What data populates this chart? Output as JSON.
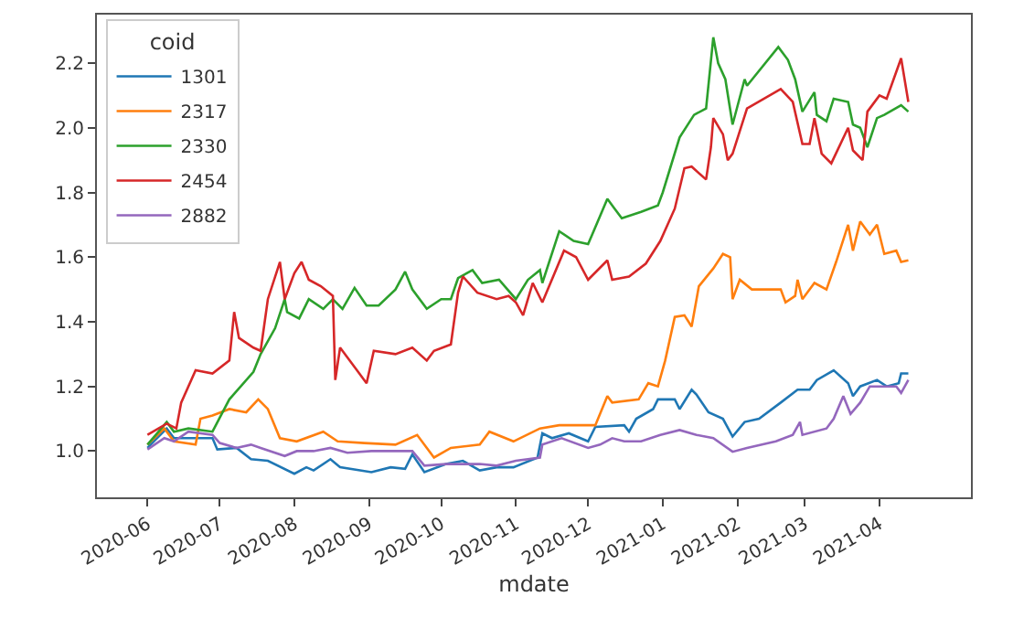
{
  "chart_data": {
    "type": "line",
    "xlabel": "mdate",
    "legend_title": "coid",
    "legend": "top left",
    "xlim": [
      "2020-05-11",
      "2021-05-09"
    ],
    "ylim": [
      0.857,
      2.35
    ],
    "xticks": [
      {
        "value": "2020-06-01",
        "label": "2020-06"
      },
      {
        "value": "2020-07-01",
        "label": "2020-07"
      },
      {
        "value": "2020-08-01",
        "label": "2020-08"
      },
      {
        "value": "2020-09-01",
        "label": "2020-09"
      },
      {
        "value": "2020-10-01",
        "label": "2020-10"
      },
      {
        "value": "2020-11-01",
        "label": "2020-11"
      },
      {
        "value": "2020-12-01",
        "label": "2020-12"
      },
      {
        "value": "2021-01-01",
        "label": "2021-01"
      },
      {
        "value": "2021-02-01",
        "label": "2021-02"
      },
      {
        "value": "2021-03-01",
        "label": "2021-03"
      },
      {
        "value": "2021-04-01",
        "label": "2021-04"
      }
    ],
    "yticks": [
      {
        "value": 1.0,
        "label": "1.0"
      },
      {
        "value": 1.2,
        "label": "1.2"
      },
      {
        "value": 1.4,
        "label": "1.4"
      },
      {
        "value": 1.6,
        "label": "1.6"
      },
      {
        "value": 1.8,
        "label": "1.8"
      },
      {
        "value": 2.0,
        "label": "2.0"
      },
      {
        "value": 2.2,
        "label": "2.2"
      }
    ],
    "series": [
      {
        "name": "1301",
        "color": "#1f77b4",
        "x": [
          "2020-06-01",
          "2020-06-09",
          "2020-06-12",
          "2020-06-18",
          "2020-06-28",
          "2020-06-30",
          "2020-07-08",
          "2020-07-14",
          "2020-07-21",
          "2020-08-01",
          "2020-08-06",
          "2020-08-09",
          "2020-08-16",
          "2020-08-20",
          "2020-09-02",
          "2020-09-10",
          "2020-09-16",
          "2020-09-19",
          "2020-09-24",
          "2020-10-03",
          "2020-10-10",
          "2020-10-17",
          "2020-10-24",
          "2020-10-31",
          "2020-11-10",
          "2020-11-12",
          "2020-11-16",
          "2020-11-23",
          "2020-12-01",
          "2020-12-04",
          "2020-12-16",
          "2020-12-18",
          "2020-12-21",
          "2020-12-28",
          "2020-12-30",
          "2021-01-06",
          "2021-01-08",
          "2021-01-13",
          "2021-01-15",
          "2021-01-20",
          "2021-01-26",
          "2021-01-30",
          "2021-02-04",
          "2021-02-10",
          "2021-02-19",
          "2021-02-26",
          "2021-03-03",
          "2021-03-06",
          "2021-03-13",
          "2021-03-19",
          "2021-03-21",
          "2021-03-24",
          "2021-03-31",
          "2021-04-04",
          "2021-04-09",
          "2021-04-10",
          "2021-04-13"
        ],
        "values": [
          1.01,
          1.07,
          1.04,
          1.04,
          1.04,
          1.005,
          1.01,
          0.975,
          0.97,
          0.93,
          0.95,
          0.94,
          0.975,
          0.95,
          0.935,
          0.95,
          0.945,
          0.99,
          0.935,
          0.96,
          0.97,
          0.94,
          0.95,
          0.95,
          0.98,
          1.055,
          1.04,
          1.055,
          1.03,
          1.075,
          1.08,
          1.06,
          1.1,
          1.13,
          1.16,
          1.16,
          1.13,
          1.19,
          1.175,
          1.12,
          1.1,
          1.045,
          1.09,
          1.1,
          1.15,
          1.19,
          1.19,
          1.22,
          1.25,
          1.21,
          1.17,
          1.2,
          1.22,
          1.2,
          1.21,
          1.24,
          1.24
        ]
      },
      {
        "name": "2317",
        "color": "#ff7f0e",
        "x": [
          "2020-06-01",
          "2020-06-08",
          "2020-06-12",
          "2020-06-21",
          "2020-06-23",
          "2020-06-28",
          "2020-07-05",
          "2020-07-12",
          "2020-07-17",
          "2020-07-21",
          "2020-07-26",
          "2020-08-02",
          "2020-08-13",
          "2020-08-19",
          "2020-08-30",
          "2020-09-12",
          "2020-09-21",
          "2020-09-28",
          "2020-10-05",
          "2020-10-17",
          "2020-10-21",
          "2020-10-31",
          "2020-11-11",
          "2020-11-19",
          "2020-12-04",
          "2020-12-09",
          "2020-12-11",
          "2020-12-22",
          "2020-12-26",
          "2020-12-30",
          "2021-01-02",
          "2021-01-06",
          "2021-01-10",
          "2021-01-13",
          "2021-01-16",
          "2021-01-22",
          "2021-01-26",
          "2021-01-29",
          "2021-01-30",
          "2021-02-02",
          "2021-02-07",
          "2021-02-19",
          "2021-02-21",
          "2021-02-25",
          "2021-02-26",
          "2021-02-28",
          "2021-03-05",
          "2021-03-10",
          "2021-03-14",
          "2021-03-19",
          "2021-03-21",
          "2021-03-24",
          "2021-03-28",
          "2021-03-31",
          "2021-04-03",
          "2021-04-08",
          "2021-04-10",
          "2021-04-13"
        ],
        "values": [
          1.02,
          1.07,
          1.03,
          1.02,
          1.1,
          1.11,
          1.13,
          1.12,
          1.16,
          1.13,
          1.04,
          1.03,
          1.06,
          1.03,
          1.025,
          1.02,
          1.05,
          0.98,
          1.01,
          1.02,
          1.06,
          1.03,
          1.07,
          1.08,
          1.08,
          1.17,
          1.15,
          1.16,
          1.21,
          1.2,
          1.28,
          1.415,
          1.42,
          1.385,
          1.51,
          1.565,
          1.61,
          1.6,
          1.47,
          1.53,
          1.5,
          1.5,
          1.46,
          1.48,
          1.53,
          1.47,
          1.52,
          1.5,
          1.585,
          1.7,
          1.62,
          1.71,
          1.67,
          1.7,
          1.61,
          1.62,
          1.585,
          1.59
        ]
      },
      {
        "name": "2330",
        "color": "#2ca02c",
        "x": [
          "2020-06-01",
          "2020-06-09",
          "2020-06-12",
          "2020-06-18",
          "2020-06-28",
          "2020-07-05",
          "2020-07-15",
          "2020-07-18",
          "2020-07-24",
          "2020-07-28",
          "2020-07-29",
          "2020-08-03",
          "2020-08-07",
          "2020-08-13",
          "2020-08-17",
          "2020-08-21",
          "2020-08-26",
          "2020-08-31",
          "2020-09-05",
          "2020-09-12",
          "2020-09-16",
          "2020-09-19",
          "2020-09-25",
          "2020-10-01",
          "2020-10-05",
          "2020-10-08",
          "2020-10-14",
          "2020-10-18",
          "2020-10-25",
          "2020-11-01",
          "2020-11-06",
          "2020-11-11",
          "2020-11-12",
          "2020-11-19",
          "2020-11-25",
          "2020-12-01",
          "2020-12-09",
          "2020-12-12",
          "2020-12-15",
          "2020-12-23",
          "2020-12-30",
          "2021-01-01",
          "2021-01-08",
          "2021-01-14",
          "2021-01-19",
          "2021-01-22",
          "2021-01-24",
          "2021-01-27",
          "2021-01-30",
          "2021-02-04",
          "2021-02-05",
          "2021-02-18",
          "2021-02-22",
          "2021-02-25",
          "2021-02-28",
          "2021-03-05",
          "2021-03-06",
          "2021-03-10",
          "2021-03-13",
          "2021-03-19",
          "2021-03-21",
          "2021-03-24",
          "2021-03-27",
          "2021-03-31",
          "2021-04-03",
          "2021-04-10",
          "2021-04-13"
        ],
        "values": [
          1.02,
          1.09,
          1.06,
          1.07,
          1.06,
          1.16,
          1.245,
          1.3,
          1.38,
          1.47,
          1.43,
          1.41,
          1.47,
          1.44,
          1.47,
          1.44,
          1.505,
          1.45,
          1.45,
          1.5,
          1.555,
          1.5,
          1.44,
          1.47,
          1.47,
          1.535,
          1.56,
          1.52,
          1.53,
          1.47,
          1.53,
          1.56,
          1.52,
          1.68,
          1.65,
          1.64,
          1.78,
          1.75,
          1.72,
          1.74,
          1.76,
          1.8,
          1.97,
          2.04,
          2.06,
          2.28,
          2.2,
          2.15,
          2.01,
          2.15,
          2.13,
          2.25,
          2.21,
          2.15,
          2.05,
          2.11,
          2.04,
          2.02,
          2.09,
          2.08,
          2.01,
          2.0,
          1.94,
          2.03,
          2.04,
          2.07,
          2.05
        ]
      },
      {
        "name": "2454",
        "color": "#d62728",
        "x": [
          "2020-06-01",
          "2020-06-09",
          "2020-06-13",
          "2020-06-15",
          "2020-06-21",
          "2020-06-28",
          "2020-07-05",
          "2020-07-07",
          "2020-07-09",
          "2020-07-15",
          "2020-07-18",
          "2020-07-21",
          "2020-07-26",
          "2020-07-28",
          "2020-08-01",
          "2020-08-04",
          "2020-08-07",
          "2020-08-12",
          "2020-08-17",
          "2020-08-18",
          "2020-08-20",
          "2020-08-27",
          "2020-08-31",
          "2020-09-03",
          "2020-09-12",
          "2020-09-19",
          "2020-09-25",
          "2020-09-28",
          "2020-10-05",
          "2020-10-08",
          "2020-10-10",
          "2020-10-16",
          "2020-10-24",
          "2020-10-29",
          "2020-11-01",
          "2020-11-04",
          "2020-11-08",
          "2020-11-12",
          "2020-11-21",
          "2020-11-26",
          "2020-12-01",
          "2020-12-09",
          "2020-12-11",
          "2020-12-18",
          "2020-12-25",
          "2020-12-31",
          "2021-01-06",
          "2021-01-10",
          "2021-01-13",
          "2021-01-19",
          "2021-01-21",
          "2021-01-22",
          "2021-01-26",
          "2021-01-28",
          "2021-01-30",
          "2021-02-02",
          "2021-02-05",
          "2021-02-19",
          "2021-02-24",
          "2021-02-28",
          "2021-03-03",
          "2021-03-05",
          "2021-03-08",
          "2021-03-12",
          "2021-03-19",
          "2021-03-21",
          "2021-03-25",
          "2021-03-27",
          "2021-04-01",
          "2021-04-04",
          "2021-04-10",
          "2021-04-13"
        ],
        "values": [
          1.05,
          1.085,
          1.07,
          1.15,
          1.25,
          1.24,
          1.28,
          1.43,
          1.35,
          1.32,
          1.31,
          1.47,
          1.585,
          1.47,
          1.55,
          1.585,
          1.53,
          1.51,
          1.48,
          1.22,
          1.32,
          1.25,
          1.21,
          1.31,
          1.3,
          1.32,
          1.28,
          1.31,
          1.33,
          1.49,
          1.54,
          1.49,
          1.47,
          1.48,
          1.46,
          1.42,
          1.52,
          1.46,
          1.62,
          1.6,
          1.53,
          1.59,
          1.53,
          1.54,
          1.58,
          1.65,
          1.75,
          1.875,
          1.88,
          1.84,
          1.94,
          2.03,
          1.98,
          1.9,
          1.92,
          1.99,
          2.06,
          2.12,
          2.08,
          1.95,
          1.95,
          2.03,
          1.92,
          1.89,
          2.0,
          1.93,
          1.9,
          2.05,
          2.1,
          2.09,
          2.215,
          2.08
        ]
      },
      {
        "name": "2882",
        "color": "#9467bd",
        "x": [
          "2020-06-01",
          "2020-06-08",
          "2020-06-12",
          "2020-06-18",
          "2020-06-28",
          "2020-07-01",
          "2020-07-08",
          "2020-07-14",
          "2020-07-18",
          "2020-07-28",
          "2020-08-02",
          "2020-08-09",
          "2020-08-16",
          "2020-08-23",
          "2020-09-02",
          "2020-09-12",
          "2020-09-19",
          "2020-09-24",
          "2020-10-03",
          "2020-10-17",
          "2020-10-24",
          "2020-11-01",
          "2020-11-11",
          "2020-11-12",
          "2020-11-20",
          "2020-12-01",
          "2020-12-06",
          "2020-12-11",
          "2020-12-16",
          "2020-12-23",
          "2020-12-31",
          "2021-01-08",
          "2021-01-15",
          "2021-01-22",
          "2021-01-30",
          "2021-02-05",
          "2021-02-17",
          "2021-02-24",
          "2021-02-27",
          "2021-02-28",
          "2021-03-10",
          "2021-03-13",
          "2021-03-17",
          "2021-03-20",
          "2021-03-24",
          "2021-03-28",
          "2021-04-04",
          "2021-04-08",
          "2021-04-10",
          "2021-04-13"
        ],
        "values": [
          1.005,
          1.04,
          1.03,
          1.06,
          1.05,
          1.025,
          1.01,
          1.02,
          1.01,
          0.985,
          1.0,
          1.0,
          1.01,
          0.995,
          1.0,
          1.0,
          1.0,
          0.955,
          0.96,
          0.96,
          0.955,
          0.97,
          0.98,
          1.02,
          1.04,
          1.01,
          1.02,
          1.04,
          1.03,
          1.03,
          1.05,
          1.065,
          1.05,
          1.04,
          0.998,
          1.01,
          1.03,
          1.05,
          1.09,
          1.05,
          1.07,
          1.1,
          1.17,
          1.115,
          1.15,
          1.2,
          1.2,
          1.2,
          1.18,
          1.22
        ]
      }
    ]
  }
}
